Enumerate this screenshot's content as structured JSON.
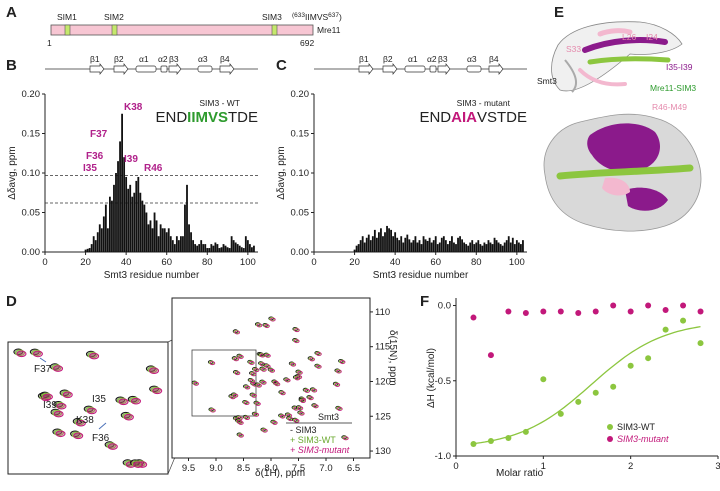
{
  "panels": {
    "A": "A",
    "B": "B",
    "C": "C",
    "D": "D",
    "E": "E",
    "F": "F"
  },
  "colors": {
    "wt_green": "#8cc63f",
    "mutant_magenta": "#c2187a",
    "sim3_black": "#111111",
    "peak_label": "#b0208a",
    "mre11_bar": "#f7c6d3",
    "sim_box": "#c5e86c",
    "pink_surface": "#f3b8cf",
    "purple_surface": "#8b1a8b"
  },
  "panel_a": {
    "sims": [
      "SIM1",
      "SIM2",
      "SIM3"
    ],
    "motif_sup1": "(633",
    "motif_mid": "IIMVS",
    "motif_sup2": "637",
    "motif_close": ")",
    "protein": "Mre11",
    "start": "1",
    "end": "692"
  },
  "secondary_structure": [
    "β1",
    "β2",
    "α1",
    "α2",
    "β3",
    "α3",
    "β4"
  ],
  "panel_b": {
    "title": "SIM3 - WT",
    "seq_pre": "END",
    "seq_hl": "IIMVS",
    "seq_post": "TDE",
    "peak_labels": [
      "K38",
      "F37",
      "F36",
      "I39",
      "I35",
      "R46"
    ]
  },
  "panel_c": {
    "title": "SIM3 - mutant",
    "seq_pre": "END",
    "seq_hl": "AIA",
    "seq_post": "VSTDE"
  },
  "shared_axes": {
    "ylabel": "Δδavg, ppm",
    "xlabel": "Smt3 residue number",
    "yticks": [
      "0.00",
      "0.05",
      "0.10",
      "0.15",
      "0.20"
    ],
    "xticks": [
      "0",
      "20",
      "40",
      "60",
      "80",
      "100"
    ]
  },
  "chart_data": [
    {
      "type": "bar",
      "title": "SIM3 - WT",
      "xlabel": "Smt3 residue number",
      "ylabel": "Δδavg, ppm",
      "xlim": [
        0,
        105
      ],
      "ylim": [
        0,
        0.2
      ],
      "threshold_lines": [
        0.062,
        0.097
      ],
      "x": [
        20,
        21,
        22,
        23,
        24,
        25,
        26,
        27,
        28,
        29,
        30,
        31,
        32,
        33,
        34,
        35,
        36,
        37,
        38,
        39,
        40,
        41,
        42,
        43,
        44,
        45,
        46,
        47,
        48,
        49,
        50,
        51,
        52,
        53,
        54,
        55,
        56,
        57,
        58,
        59,
        60,
        61,
        62,
        63,
        64,
        65,
        66,
        67,
        68,
        69,
        70,
        71,
        72,
        73,
        74,
        75,
        76,
        77,
        78,
        79,
        80,
        81,
        82,
        83,
        84,
        85,
        86,
        87,
        88,
        89,
        90,
        91,
        92,
        93,
        94,
        95,
        96,
        97,
        98,
        99,
        100,
        101,
        102,
        103
      ],
      "values": [
        0.003,
        0.004,
        0.005,
        0.01,
        0.02,
        0.015,
        0.025,
        0.035,
        0.03,
        0.045,
        0.06,
        0.03,
        0.07,
        0.065,
        0.085,
        0.1,
        0.115,
        0.14,
        0.175,
        0.12,
        0.095,
        0.08,
        0.085,
        0.07,
        0.075,
        0.09,
        0.095,
        0.075,
        0.065,
        0.06,
        0.05,
        0.035,
        0.04,
        0.03,
        0.05,
        0.04,
        0.02,
        0.035,
        0.03,
        0.03,
        0.025,
        0.03,
        0.02,
        0.015,
        0.01,
        0.02,
        0.015,
        0.02,
        0.02,
        0.06,
        0.085,
        0.035,
        0.025,
        0.015,
        0.01,
        0.008,
        0.01,
        0.015,
        0.01,
        0.01,
        0.005,
        0.005,
        0.01,
        0.008,
        0.012,
        0.01,
        0.005,
        0.006,
        0.01,
        0.008,
        0.006,
        0.005,
        0.02,
        0.015,
        0.012,
        0.01,
        0.008,
        0.006,
        0.005,
        0.02,
        0.015,
        0.01,
        0.006,
        0.008
      ]
    },
    {
      "type": "bar",
      "title": "SIM3 - mutant",
      "xlabel": "Smt3 residue number",
      "ylabel": "Δδavg, ppm",
      "xlim": [
        0,
        105
      ],
      "ylim": [
        0,
        0.2
      ],
      "x": [
        20,
        21,
        22,
        23,
        24,
        25,
        26,
        27,
        28,
        29,
        30,
        31,
        32,
        33,
        34,
        35,
        36,
        37,
        38,
        39,
        40,
        41,
        42,
        43,
        44,
        45,
        46,
        47,
        48,
        49,
        50,
        51,
        52,
        53,
        54,
        55,
        56,
        57,
        58,
        59,
        60,
        61,
        62,
        63,
        64,
        65,
        66,
        67,
        68,
        69,
        70,
        71,
        72,
        73,
        74,
        75,
        76,
        77,
        78,
        79,
        80,
        81,
        82,
        83,
        84,
        85,
        86,
        87,
        88,
        89,
        90,
        91,
        92,
        93,
        94,
        95,
        96,
        97,
        98,
        99,
        100,
        101,
        102,
        103
      ],
      "values": [
        0.003,
        0.008,
        0.01,
        0.015,
        0.02,
        0.012,
        0.018,
        0.022,
        0.015,
        0.02,
        0.028,
        0.018,
        0.025,
        0.03,
        0.02,
        0.025,
        0.033,
        0.03,
        0.028,
        0.02,
        0.025,
        0.018,
        0.015,
        0.02,
        0.012,
        0.018,
        0.022,
        0.016,
        0.012,
        0.015,
        0.02,
        0.012,
        0.015,
        0.01,
        0.02,
        0.016,
        0.014,
        0.018,
        0.012,
        0.015,
        0.02,
        0.01,
        0.012,
        0.018,
        0.02,
        0.015,
        0.01,
        0.014,
        0.02,
        0.012,
        0.01,
        0.018,
        0.02,
        0.016,
        0.012,
        0.01,
        0.008,
        0.012,
        0.015,
        0.01,
        0.012,
        0.015,
        0.01,
        0.008,
        0.012,
        0.01,
        0.015,
        0.012,
        0.01,
        0.018,
        0.015,
        0.012,
        0.01,
        0.008,
        0.012,
        0.015,
        0.02,
        0.012,
        0.018,
        0.01,
        0.015,
        0.012,
        0.01,
        0.015
      ]
    },
    {
      "type": "scatter",
      "title": "",
      "xlabel": "Molar ratio",
      "ylabel": "ΔH (kcal/mol)",
      "xlim": [
        0,
        3
      ],
      "ylim": [
        -1.0,
        0.05
      ],
      "series": [
        {
          "name": "SIM3-WT",
          "x": [
            0.2,
            0.4,
            0.6,
            0.8,
            1.0,
            1.2,
            1.4,
            1.6,
            1.8,
            2.0,
            2.2,
            2.4,
            2.6,
            2.8
          ],
          "values": [
            -0.92,
            -0.9,
            -0.88,
            -0.84,
            -0.49,
            -0.72,
            -0.64,
            -0.58,
            -0.54,
            -0.4,
            -0.35,
            -0.16,
            -0.1,
            -0.25
          ],
          "fit_curve": true
        },
        {
          "name": "SIM3-mutant",
          "x": [
            0.2,
            0.4,
            0.6,
            0.8,
            1.0,
            1.2,
            1.4,
            1.6,
            1.8,
            2.0,
            2.2,
            2.4,
            2.6,
            2.8
          ],
          "values": [
            -0.08,
            -0.33,
            -0.04,
            -0.05,
            -0.04,
            -0.04,
            -0.05,
            -0.04,
            0.0,
            -0.04,
            0.0,
            -0.03,
            0.0,
            -0.04
          ]
        }
      ],
      "xticks": [
        "0",
        "1",
        "2",
        "3"
      ],
      "yticks": [
        "-1.0",
        "-0.5",
        "0.0"
      ]
    }
  ],
  "panel_d": {
    "inset_labels": [
      "F37",
      "I39",
      "I35",
      "K38",
      "F36"
    ],
    "legend_title": "Smt3",
    "legend": [
      "- SIM3",
      "+ SIM3-WT",
      "+ SIM3-mutant"
    ],
    "xlabel": "δ(1H), ppm",
    "ylabel": "δ(15N), ppm",
    "xticks": [
      "9.5",
      "9.0",
      "8.5",
      "8.0",
      "7.5",
      "7.0",
      "6.5"
    ],
    "yticks": [
      "110",
      "115",
      "120",
      "125",
      "130"
    ]
  },
  "panel_e": {
    "labels": [
      "L26",
      "I24",
      "S33",
      "Smt3",
      "I35-I39",
      "Mre11-SIM3",
      "R46-M49"
    ]
  },
  "panel_f": {
    "legend": [
      "SIM3-WT",
      "SIM3-mutant"
    ]
  }
}
